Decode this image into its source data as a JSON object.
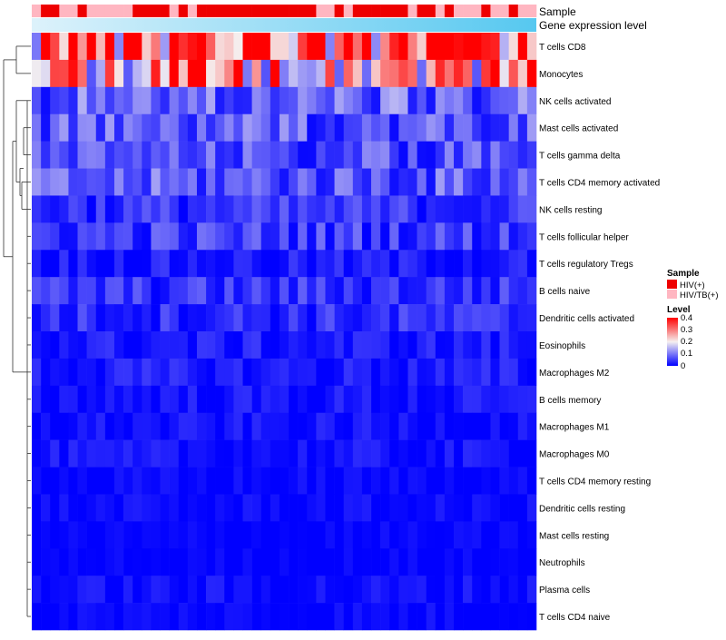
{
  "chart_data": {
    "type": "heatmap",
    "title": "",
    "annotation_tracks": [
      {
        "name": "Sample",
        "label": "Sample"
      },
      {
        "name": "Gene expression level",
        "label": "Gene expression level"
      }
    ],
    "sample_groups": [
      "HIV/TB(+)",
      "HIV(+)",
      "HIV(+)",
      "HIV/TB(+)",
      "HIV/TB(+)",
      "HIV(+)",
      "HIV/TB(+)",
      "HIV/TB(+)",
      "HIV/TB(+)",
      "HIV/TB(+)",
      "HIV/TB(+)",
      "HIV(+)",
      "HIV(+)",
      "HIV(+)",
      "HIV(+)",
      "HIV/TB(+)",
      "HIV(+)",
      "HIV/TB(+)",
      "HIV(+)",
      "HIV(+)",
      "HIV(+)",
      "HIV(+)",
      "HIV(+)",
      "HIV(+)",
      "HIV(+)",
      "HIV(+)",
      "HIV(+)",
      "HIV(+)",
      "HIV(+)",
      "HIV(+)",
      "HIV(+)",
      "HIV/TB(+)",
      "HIV/TB(+)",
      "HIV(+)",
      "HIV/TB(+)",
      "HIV(+)",
      "HIV(+)",
      "HIV(+)",
      "HIV(+)",
      "HIV(+)",
      "HIV(+)",
      "HIV/TB(+)",
      "HIV(+)",
      "HIV(+)",
      "HIV/TB(+)",
      "HIV(+)",
      "HIV/TB(+)",
      "HIV/TB(+)",
      "HIV/TB(+)",
      "HIV(+)",
      "HIV/TB(+)",
      "HIV/TB(+)",
      "HIV(+)",
      "HIV/TB(+)",
      "HIV/TB(+)"
    ],
    "rows": [
      "T cells CD8",
      "Monocytes",
      "NK cells activated",
      "Mast cells activated",
      "T cells gamma delta",
      "T cells CD4 memory activated",
      "NK cells resting",
      "T cells follicular helper",
      "T cells regulatory  Tregs",
      "B cells naive",
      "Dendritic cells activated",
      "Eosinophils",
      "Macrophages M2",
      "B cells memory",
      "Macrophages M1",
      "Macrophages M0",
      "T cells CD4 memory resting",
      "Dendritic cells resting",
      "Mast cells resting",
      "Neutrophils",
      "Plasma cells",
      "T cells CD4 naive"
    ],
    "row_means": [
      0.38,
      0.26,
      0.08,
      0.07,
      0.06,
      0.07,
      0.04,
      0.05,
      0.02,
      0.04,
      0.035,
      0.02,
      0.02,
      0.015,
      0.012,
      0.012,
      0.004,
      0.006,
      0.001,
      0.0,
      0.01,
      0.005
    ],
    "legend": {
      "sample": {
        "title": "Sample",
        "entries": [
          {
            "label": "HIV(+)",
            "color": "#ee0000"
          },
          {
            "label": "HIV/TB(+)",
            "color": "#ffb6c1"
          }
        ]
      },
      "level": {
        "title": "Level",
        "ticks": [
          "0.4",
          "0.3",
          "0.2",
          "0.1",
          "0"
        ],
        "range": [
          0,
          0.4
        ]
      }
    },
    "colors": {
      "low": "#0000ff",
      "mid": "#f5f0f0",
      "high": "#ff0000",
      "expr_start": "#ddf2fb",
      "expr_end": "#56c8f0"
    }
  }
}
